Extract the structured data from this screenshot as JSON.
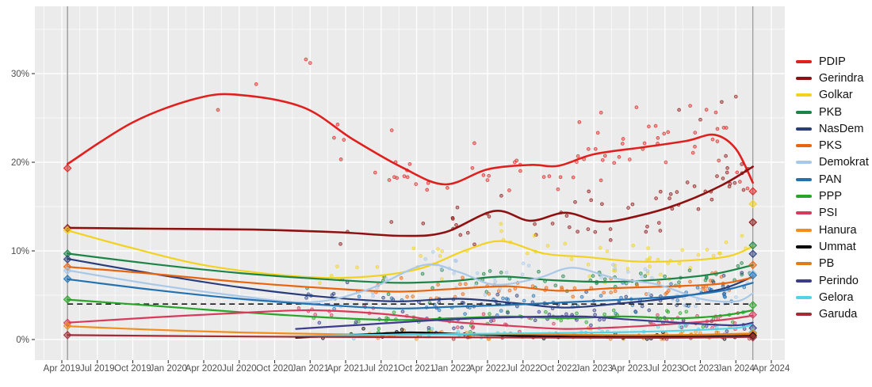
{
  "chart_data": {
    "type": "line",
    "description": "Indonesian political party polling 2019-2024: smoothed trend lines with jittered poll scatter points, election-result diamonds on the vertical election-date lines, dashed 4% parliamentary threshold",
    "title": "",
    "xlabel": "",
    "ylabel": "",
    "legend_position": "right",
    "grid": true,
    "panel_background": "#ebebeb",
    "gridline_color": "#ffffff",
    "axis_text_color": "#4d4d4d",
    "tick_color": "#333333",
    "election_line_color": "#9b9b9b",
    "threshold_line": {
      "value": 4,
      "style": "dashed",
      "color": "#1a1a1a"
    },
    "y_axis": {
      "tick_labels": [
        "0%",
        "10%",
        "20%",
        "30%"
      ],
      "tick_values": [
        0,
        10,
        20,
        30
      ],
      "minor_values": [
        5,
        15,
        25,
        35
      ],
      "range_shown": [
        -2,
        37.5
      ]
    },
    "x_axis": {
      "tick_labels": [
        "Apr 2019",
        "Jul 2019",
        "Oct 2019",
        "Jan 2020",
        "Apr 2020",
        "Jul 2020",
        "Oct 2020",
        "Jan 2021",
        "Apr 2021",
        "Jul 2021",
        "Oct 2021",
        "Jan 2022",
        "Apr 2022",
        "Jul 2022",
        "Oct 2022",
        "Jan 2023",
        "Apr 2023",
        "Jul 2023",
        "Oct 2023",
        "Jan 2024",
        "Apr 2024"
      ],
      "tick_start_year": 2019.25,
      "tick_step_years": 0.25
    },
    "elections": [
      {
        "label": "2019 election",
        "t": 2019.29,
        "results": {
          "PDIP": 19.33,
          "Gerindra": 12.57,
          "Golkar": 12.31,
          "PKB": 9.69,
          "NasDem": 9.05,
          "PKS": 8.21,
          "Demokrat": 7.77,
          "PAN": 6.84,
          "PPP": 4.52,
          "PSI": 1.89,
          "Hanura": 1.54,
          "Garuda": 0.5
        }
      },
      {
        "label": "2024 election",
        "t": 2024.12,
        "results": {
          "PDIP": 16.72,
          "Golkar": 15.29,
          "Gerindra": 13.22,
          "PKB": 10.62,
          "NasDem": 9.66,
          "PKS": 8.42,
          "Demokrat": 7.43,
          "PAN": 7.24,
          "PPP": 3.87,
          "PSI": 2.8,
          "Perindo": 1.29,
          "Gelora": 0.84,
          "Hanura": 0.72,
          "PB": 0.64,
          "Ummat": 0.42,
          "Garuda": 0.25
        }
      }
    ],
    "series": [
      {
        "name": "PDIP",
        "color": "#e0201e",
        "line_width": 2.6,
        "scatter_n": 72,
        "scatter_spread": 2.3,
        "points": [
          [
            2019.29,
            19.8
          ],
          [
            2019.75,
            24.5
          ],
          [
            2020.2,
            27.2
          ],
          [
            2020.5,
            27.6
          ],
          [
            2020.95,
            26.2
          ],
          [
            2021.3,
            22.6
          ],
          [
            2021.65,
            19.4
          ],
          [
            2021.95,
            17.5
          ],
          [
            2022.25,
            19.2
          ],
          [
            2022.55,
            19.7
          ],
          [
            2022.75,
            19.6
          ],
          [
            2023.0,
            20.9
          ],
          [
            2023.35,
            21.7
          ],
          [
            2023.65,
            22.4
          ],
          [
            2023.85,
            23.1
          ],
          [
            2024.0,
            21.5
          ],
          [
            2024.12,
            17.7
          ]
        ],
        "extra_scatter": [
          [
            2020.62,
            28.8
          ],
          [
            2020.97,
            31.6
          ],
          [
            2021.0,
            31.2
          ],
          [
            2020.35,
            25.9
          ],
          [
            2023.3,
            26.2
          ],
          [
            2023.05,
            25.6
          ]
        ]
      },
      {
        "name": "Gerindra",
        "color": "#8e1112",
        "line_width": 2.6,
        "scatter_n": 62,
        "scatter_spread": 2.1,
        "points": [
          [
            2019.29,
            12.6
          ],
          [
            2019.9,
            12.5
          ],
          [
            2020.6,
            12.4
          ],
          [
            2021.2,
            12.1
          ],
          [
            2021.65,
            11.7
          ],
          [
            2021.95,
            12.1
          ],
          [
            2022.3,
            14.5
          ],
          [
            2022.55,
            13.4
          ],
          [
            2022.8,
            14.3
          ],
          [
            2023.05,
            13.3
          ],
          [
            2023.3,
            13.9
          ],
          [
            2023.6,
            15.3
          ],
          [
            2023.9,
            17.4
          ],
          [
            2024.12,
            19.5
          ]
        ],
        "extra_scatter": [
          [
            2023.6,
            25.9
          ],
          [
            2023.9,
            26.8
          ],
          [
            2024.0,
            27.4
          ],
          [
            2023.75,
            24.8
          ]
        ]
      },
      {
        "name": "Golkar",
        "color": "#f2d21e",
        "line_width": 2.2,
        "scatter_n": 58,
        "scatter_spread": 1.6,
        "points": [
          [
            2019.29,
            12.3
          ],
          [
            2019.75,
            10.3
          ],
          [
            2020.25,
            8.4
          ],
          [
            2020.85,
            7.2
          ],
          [
            2021.3,
            7.0
          ],
          [
            2021.75,
            7.9
          ],
          [
            2022.1,
            10.1
          ],
          [
            2022.35,
            11.1
          ],
          [
            2022.65,
            9.7
          ],
          [
            2022.95,
            9.3
          ],
          [
            2023.3,
            8.8
          ],
          [
            2023.65,
            8.9
          ],
          [
            2023.95,
            9.4
          ],
          [
            2024.12,
            10.5
          ]
        ],
        "extra_scatter": []
      },
      {
        "name": "PKB",
        "color": "#1b8446",
        "line_width": 2.2,
        "scatter_n": 52,
        "scatter_spread": 1.3,
        "points": [
          [
            2019.29,
            9.7
          ],
          [
            2019.9,
            8.5
          ],
          [
            2020.5,
            7.5
          ],
          [
            2021.1,
            6.8
          ],
          [
            2021.6,
            6.4
          ],
          [
            2022.0,
            6.6
          ],
          [
            2022.35,
            7.1
          ],
          [
            2022.7,
            6.7
          ],
          [
            2023.1,
            6.5
          ],
          [
            2023.5,
            6.8
          ],
          [
            2023.85,
            7.4
          ],
          [
            2024.12,
            8.4
          ]
        ],
        "extra_scatter": []
      },
      {
        "name": "NasDem",
        "color": "#293d7d",
        "line_width": 2.2,
        "scatter_n": 50,
        "scatter_spread": 1.3,
        "points": [
          [
            2019.29,
            9.1
          ],
          [
            2019.9,
            7.4
          ],
          [
            2020.5,
            5.9
          ],
          [
            2021.1,
            4.8
          ],
          [
            2021.6,
            4.3
          ],
          [
            2022.05,
            4.6
          ],
          [
            2022.45,
            4.1
          ],
          [
            2022.8,
            3.6
          ],
          [
            2023.2,
            4.1
          ],
          [
            2023.55,
            4.7
          ],
          [
            2023.9,
            5.7
          ],
          [
            2024.12,
            7.1
          ]
        ],
        "extra_scatter": []
      },
      {
        "name": "PKS",
        "color": "#e8650e",
        "line_width": 2.2,
        "scatter_n": 52,
        "scatter_spread": 1.2,
        "points": [
          [
            2019.29,
            8.2
          ],
          [
            2019.9,
            7.4
          ],
          [
            2020.5,
            6.5
          ],
          [
            2021.1,
            5.8
          ],
          [
            2021.6,
            5.4
          ],
          [
            2022.0,
            5.7
          ],
          [
            2022.4,
            6.0
          ],
          [
            2022.75,
            5.5
          ],
          [
            2023.15,
            5.8
          ],
          [
            2023.55,
            6.0
          ],
          [
            2023.9,
            6.3
          ],
          [
            2024.12,
            7.0
          ]
        ],
        "extra_scatter": []
      },
      {
        "name": "Demokrat",
        "color": "#a9c8e8",
        "line_width": 2.2,
        "scatter_n": 52,
        "scatter_spread": 1.4,
        "points": [
          [
            2019.29,
            7.8
          ],
          [
            2019.9,
            6.2
          ],
          [
            2020.5,
            4.9
          ],
          [
            2021.0,
            4.2
          ],
          [
            2021.4,
            5.6
          ],
          [
            2021.8,
            8.4
          ],
          [
            2022.05,
            7.6
          ],
          [
            2022.3,
            6.2
          ],
          [
            2022.6,
            6.9
          ],
          [
            2022.85,
            8.1
          ],
          [
            2023.15,
            6.9
          ],
          [
            2023.45,
            6.2
          ],
          [
            2023.75,
            4.6
          ],
          [
            2024.0,
            4.3
          ],
          [
            2024.12,
            5.2
          ]
        ],
        "extra_scatter": []
      },
      {
        "name": "PAN",
        "color": "#2272b2",
        "line_width": 2.2,
        "scatter_n": 48,
        "scatter_spread": 1.2,
        "points": [
          [
            2019.29,
            6.8
          ],
          [
            2019.9,
            5.6
          ],
          [
            2020.5,
            4.6
          ],
          [
            2021.1,
            3.9
          ],
          [
            2021.6,
            3.5
          ],
          [
            2022.0,
            3.7
          ],
          [
            2022.4,
            3.9
          ],
          [
            2022.8,
            4.2
          ],
          [
            2023.2,
            4.5
          ],
          [
            2023.6,
            4.9
          ],
          [
            2023.9,
            5.5
          ],
          [
            2024.12,
            6.4
          ]
        ],
        "extra_scatter": []
      },
      {
        "name": "PPP",
        "color": "#28a428",
        "line_width": 2.2,
        "scatter_n": 44,
        "scatter_spread": 1.0,
        "points": [
          [
            2019.29,
            4.5
          ],
          [
            2019.9,
            3.8
          ],
          [
            2020.5,
            3.1
          ],
          [
            2021.1,
            2.5
          ],
          [
            2021.6,
            2.2
          ],
          [
            2022.0,
            2.4
          ],
          [
            2022.4,
            2.6
          ],
          [
            2022.8,
            2.4
          ],
          [
            2023.2,
            2.6
          ],
          [
            2023.6,
            2.4
          ],
          [
            2023.9,
            2.7
          ],
          [
            2024.12,
            3.3
          ]
        ],
        "extra_scatter": []
      },
      {
        "name": "PSI",
        "color": "#d83a5b",
        "line_width": 2.2,
        "scatter_n": 44,
        "scatter_spread": 0.9,
        "points": [
          [
            2019.29,
            1.9
          ],
          [
            2019.9,
            2.5
          ],
          [
            2020.5,
            3.0
          ],
          [
            2021.0,
            3.3
          ],
          [
            2021.5,
            2.9
          ],
          [
            2022.0,
            2.0
          ],
          [
            2022.45,
            1.5
          ],
          [
            2022.8,
            1.2
          ],
          [
            2023.2,
            1.4
          ],
          [
            2023.6,
            1.8
          ],
          [
            2023.9,
            2.2
          ],
          [
            2024.12,
            2.7
          ]
        ],
        "extra_scatter": []
      },
      {
        "name": "Hanura",
        "color": "#f28e1d",
        "line_width": 2.2,
        "scatter_n": 26,
        "scatter_spread": 0.5,
        "points": [
          [
            2019.29,
            1.5
          ],
          [
            2019.9,
            1.1
          ],
          [
            2020.5,
            0.8
          ],
          [
            2021.2,
            0.6
          ],
          [
            2021.8,
            0.6
          ],
          [
            2022.4,
            0.5
          ],
          [
            2023.0,
            0.5
          ],
          [
            2023.6,
            0.5
          ],
          [
            2024.12,
            0.7
          ]
        ],
        "extra_scatter": []
      },
      {
        "name": "Ummat",
        "color": "#000000",
        "line_width": 2.2,
        "scatter_n": 22,
        "scatter_spread": 0.4,
        "points": [
          [
            2020.9,
            0.2
          ],
          [
            2021.3,
            0.5
          ],
          [
            2021.7,
            0.8
          ],
          [
            2022.1,
            0.6
          ],
          [
            2022.5,
            0.4
          ],
          [
            2023.0,
            0.3
          ],
          [
            2023.5,
            0.3
          ],
          [
            2024.12,
            0.4
          ]
        ],
        "extra_scatter": []
      },
      {
        "name": "PB",
        "color": "#e07c15",
        "line_width": 2.2,
        "scatter_n": 22,
        "scatter_spread": 0.4,
        "points": [
          [
            2021.0,
            0.3
          ],
          [
            2021.5,
            0.5
          ],
          [
            2022.0,
            0.6
          ],
          [
            2022.5,
            0.6
          ],
          [
            2023.0,
            0.5
          ],
          [
            2023.6,
            0.5
          ],
          [
            2024.12,
            0.6
          ]
        ],
        "extra_scatter": []
      },
      {
        "name": "Perindo",
        "color": "#3d3b8e",
        "line_width": 2.2,
        "scatter_n": 34,
        "scatter_spread": 0.8,
        "points": [
          [
            2020.9,
            1.2
          ],
          [
            2021.4,
            1.7
          ],
          [
            2021.9,
            2.2
          ],
          [
            2022.4,
            2.5
          ],
          [
            2022.9,
            2.6
          ],
          [
            2023.3,
            2.2
          ],
          [
            2023.7,
            1.8
          ],
          [
            2024.0,
            1.6
          ],
          [
            2024.12,
            1.9
          ]
        ],
        "extra_scatter": []
      },
      {
        "name": "Gelora",
        "color": "#52d4e4",
        "line_width": 2.2,
        "scatter_n": 26,
        "scatter_spread": 0.5,
        "points": [
          [
            2020.85,
            0.3
          ],
          [
            2021.3,
            0.5
          ],
          [
            2021.9,
            0.6
          ],
          [
            2022.5,
            0.7
          ],
          [
            2023.1,
            0.8
          ],
          [
            2023.6,
            1.0
          ],
          [
            2024.0,
            1.3
          ],
          [
            2024.12,
            1.7
          ]
        ],
        "extra_scatter": []
      },
      {
        "name": "Garuda",
        "color": "#a52a33",
        "line_width": 2.2,
        "scatter_n": 16,
        "scatter_spread": 0.3,
        "points": [
          [
            2019.29,
            0.5
          ],
          [
            2020.0,
            0.4
          ],
          [
            2021.0,
            0.3
          ],
          [
            2022.0,
            0.25
          ],
          [
            2023.0,
            0.2
          ],
          [
            2023.6,
            0.2
          ],
          [
            2024.12,
            0.3
          ]
        ],
        "extra_scatter": []
      }
    ],
    "legend": {
      "labels": [
        "PDIP",
        "Gerindra",
        "Golkar",
        "PKB",
        "NasDem",
        "PKS",
        "Demokrat",
        "PAN",
        "PPP",
        "PSI",
        "Hanura",
        "Ummat",
        "PB",
        "Perindo",
        "Gelora",
        "Garuda"
      ]
    }
  }
}
